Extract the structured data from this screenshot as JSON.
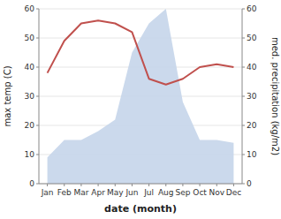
{
  "chart_data": {
    "type": "line",
    "x_label": "date (month)",
    "y_label": "max temp (C)",
    "y2_label": "med. precipitation (kg/m2)",
    "categories": [
      "Jan",
      "Feb",
      "Mar",
      "Apr",
      "May",
      "Jun",
      "Jul",
      "Aug",
      "Sep",
      "Oct",
      "Nov",
      "Dec"
    ],
    "series": [
      {
        "type": "line",
        "color": "#c0504d",
        "values": [
          38,
          49,
          55,
          56,
          55,
          52,
          36,
          34,
          36,
          40,
          41,
          40
        ]
      },
      {
        "type": "area",
        "color": "#c5d5ea",
        "axis": "y2",
        "values": [
          9,
          15,
          15,
          18,
          22,
          45,
          55,
          60,
          28,
          15,
          15,
          14
        ]
      }
    ],
    "ylim": [
      0,
      60
    ],
    "yticks": [
      0,
      10,
      20,
      30,
      40,
      50,
      60
    ],
    "y2lim": [
      0,
      60
    ],
    "y2ticks": [
      0,
      10,
      20,
      30,
      40,
      50,
      60
    ],
    "grid": true
  }
}
